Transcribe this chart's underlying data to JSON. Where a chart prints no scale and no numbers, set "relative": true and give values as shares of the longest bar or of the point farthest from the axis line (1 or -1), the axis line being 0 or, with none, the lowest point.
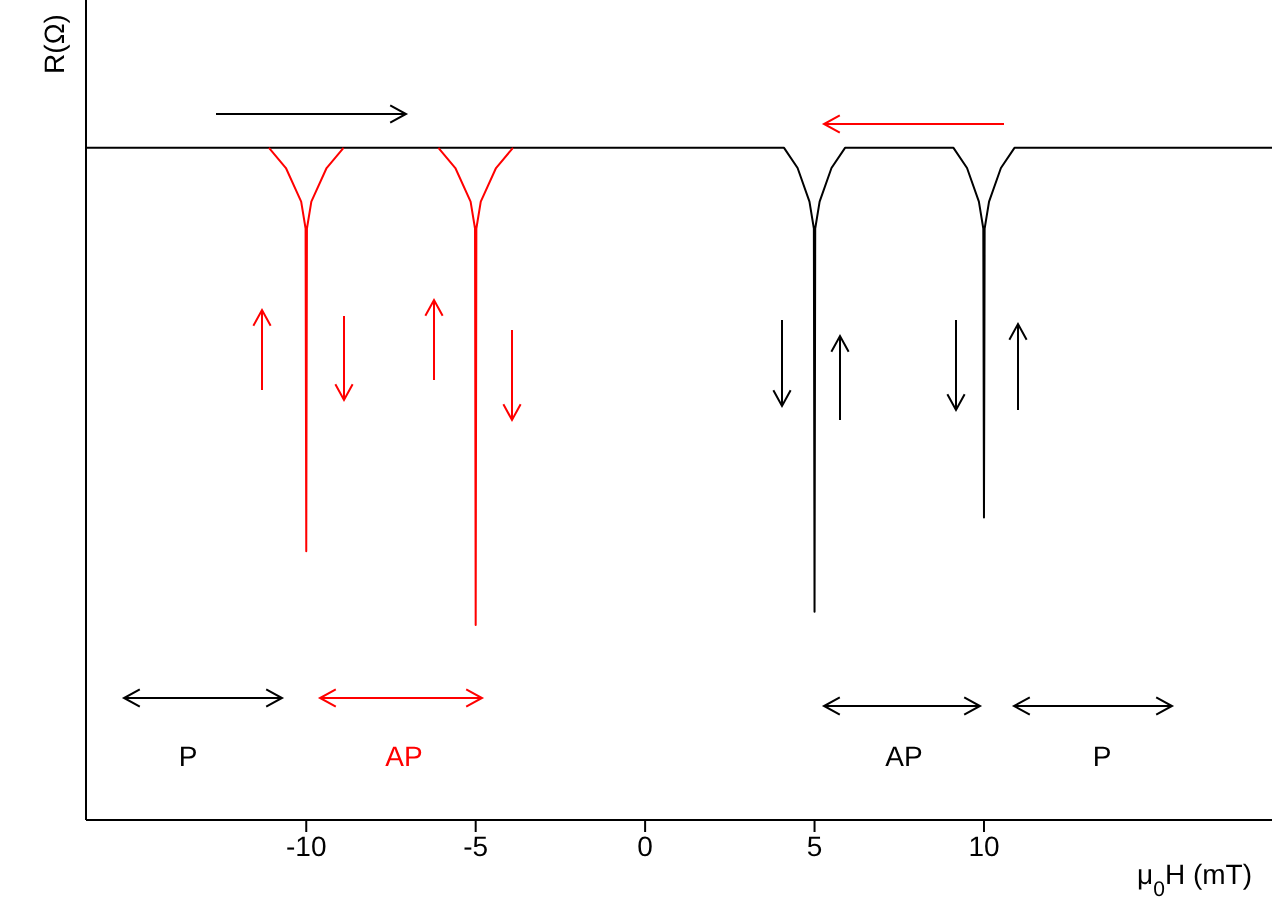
{
  "chart_data": {
    "type": "line",
    "relative": true,
    "xlabel": "μ$_{0}$H (mT)",
    "ylabel": "R(Ω)",
    "xlim": [
      -16.5,
      18.5
    ],
    "xticks": [
      -10,
      -5,
      0,
      5,
      10
    ],
    "series": [
      {
        "color": "#000000",
        "x": [
          -16.5,
          4.1,
          4.5,
          4.85,
          4.98,
          5,
          5.02,
          5.15,
          5.5,
          5.9,
          9.1,
          9.5,
          9.85,
          9.98,
          10,
          10.02,
          10.15,
          10.5,
          10.9,
          18.5
        ],
        "values": [
          1,
          1,
          0.97,
          0.92,
          0.88,
          0.31,
          0.88,
          0.92,
          0.97,
          1,
          1,
          0.97,
          0.92,
          0.88,
          0.45,
          0.88,
          0.92,
          0.97,
          1,
          1
        ]
      },
      {
        "color": "#ff0000",
        "x": [
          -11.1,
          -10.6,
          -10.15,
          -10.02,
          -10,
          -9.98,
          -9.85,
          -9.4,
          -8.9,
          -7.5,
          -6.1,
          -5.6,
          -5.15,
          -5.02,
          -5,
          -4.98,
          -4.85,
          -4.4,
          -3.9
        ],
        "values": [
          1,
          0.97,
          0.92,
          0.88,
          0.4,
          0.88,
          0.92,
          0.97,
          1,
          null,
          1,
          0.97,
          0.92,
          0.88,
          0.29,
          0.88,
          0.92,
          0.97,
          1
        ]
      }
    ],
    "annotations": [
      "P",
      "AP",
      "AP",
      "P"
    ]
  }
}
